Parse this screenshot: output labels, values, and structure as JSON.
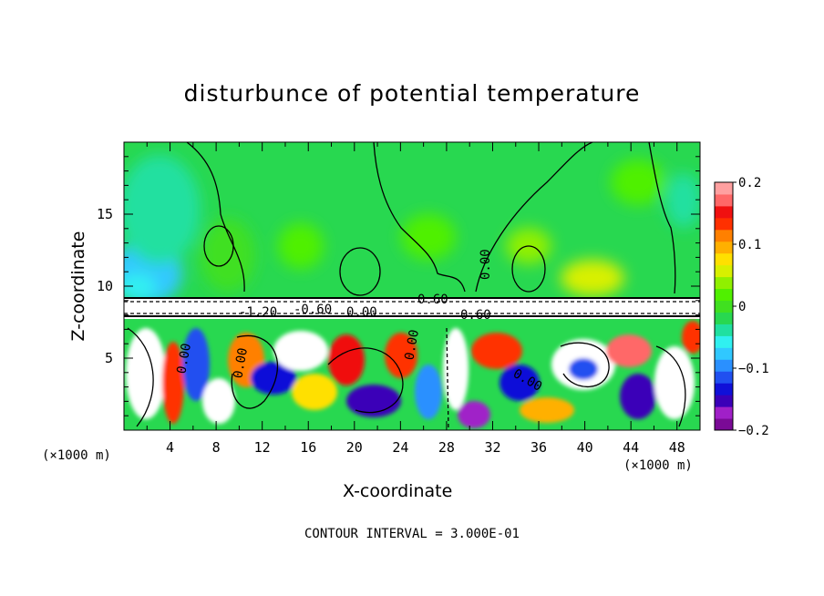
{
  "chart_data": {
    "type": "heatmap",
    "title": "disturbunce of potential temperature",
    "xlabel": "X-coordinate",
    "ylabel": "Z-coordinate",
    "x_unit_left": "(×1000 m)",
    "x_unit_right": "(×1000 m)",
    "xlim": [
      0,
      50
    ],
    "ylim": [
      0,
      20
    ],
    "x_ticks": [
      4,
      8,
      12,
      16,
      20,
      24,
      28,
      32,
      36,
      40,
      44,
      48
    ],
    "y_ticks": [
      5,
      10,
      15
    ],
    "colorbar": {
      "range": [
        -0.2,
        0.2
      ],
      "tick_labels": [
        "0.2",
        "0.1",
        "0",
        "−0.1",
        "−0.2"
      ],
      "colors": [
        "#7a0a96",
        "#a020c8",
        "#3a00b8",
        "#1010d8",
        "#2050f0",
        "#2a90ff",
        "#30c8ff",
        "#30f0f0",
        "#20e0a0",
        "#28d850",
        "#40e020",
        "#50f000",
        "#90f000",
        "#d8f000",
        "#ffe000",
        "#ffb000",
        "#ff8000",
        "#ff3000",
        "#f01010",
        "#ff6868",
        "#ffa0a0"
      ]
    },
    "contour_interval": "CONTOUR INTERVAL = 3.000E-01",
    "contour_labels": [
      "0.00",
      "0.60",
      "0.60",
      "-1.20",
      "-0.60",
      "0.00",
      "0.00",
      "0.00",
      "0.00",
      "0.00"
    ]
  }
}
